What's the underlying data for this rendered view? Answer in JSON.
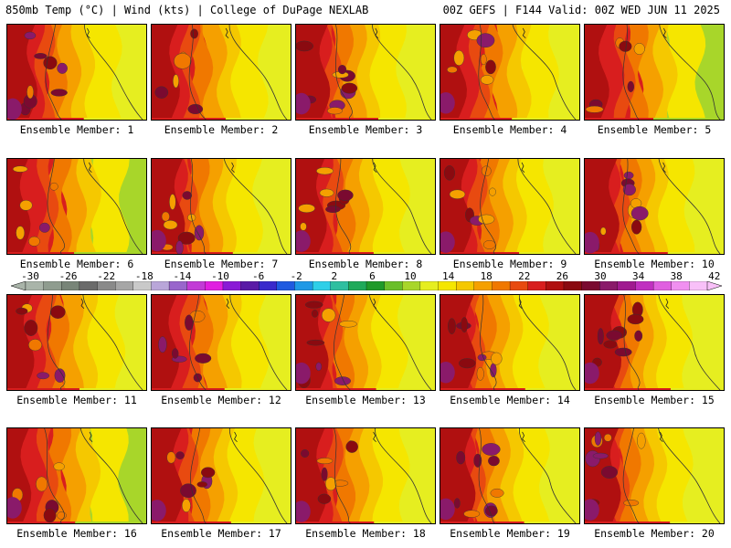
{
  "header": {
    "title_left": "850mb Temp (°C) | Wind (kts) | College of DuPage NEXLAB",
    "title_right": "00Z GEFS | F144 Valid: 00Z WED JUN 11 2025"
  },
  "colorbar": {
    "ticks": [
      "-30",
      "-26",
      "-22",
      "-18",
      "-14",
      "-10",
      "-6",
      "-2",
      "2",
      "6",
      "10",
      "14",
      "18",
      "22",
      "26",
      "30",
      "34",
      "38",
      "42"
    ],
    "colors": [
      "#a9b4a9",
      "#8f9c8f",
      "#788578",
      "#6b6b6b",
      "#8a8a8a",
      "#a6a6a6",
      "#c9c9c9",
      "#b9a6d9",
      "#9966cc",
      "#c23bd6",
      "#e01fe0",
      "#8a1ad6",
      "#5a1aa6",
      "#3a2acc",
      "#1f5ae0",
      "#1f99e6",
      "#2fcfe8",
      "#2fbfa0",
      "#1faa5a",
      "#1f9a2a",
      "#6abf2a",
      "#a8d62a",
      "#e6ee20",
      "#f5e600",
      "#f5c800",
      "#f5a000",
      "#f07800",
      "#e84a10",
      "#d81e1e",
      "#b01010",
      "#8a0a10",
      "#7a0a30",
      "#8a1a6a",
      "#a01a90",
      "#c030c0",
      "#e060e0",
      "#f090f0",
      "#f8c0f8"
    ]
  },
  "members": [
    {
      "label": "Ensemble Member: 1",
      "warm": 0.62
    },
    {
      "label": "Ensemble Member: 2",
      "warm": 0.55
    },
    {
      "label": "Ensemble Member: 3",
      "warm": 0.78
    },
    {
      "label": "Ensemble Member: 4",
      "warm": 0.48
    },
    {
      "label": "Ensemble Member: 5",
      "warm": 0.4
    },
    {
      "label": "Ensemble Member: 6",
      "warm": 0.35
    },
    {
      "label": "Ensemble Member: 7",
      "warm": 0.75
    },
    {
      "label": "Ensemble Member: 8",
      "warm": 0.65
    },
    {
      "label": "Ensemble Member: 9",
      "warm": 0.68
    },
    {
      "label": "Ensemble Member: 10",
      "warm": 0.8
    },
    {
      "label": "Ensemble Member: 11",
      "warm": 0.5
    },
    {
      "label": "Ensemble Member: 12",
      "warm": 0.52
    },
    {
      "label": "Ensemble Member: 13",
      "warm": 0.72
    },
    {
      "label": "Ensemble Member: 14",
      "warm": 0.85
    },
    {
      "label": "Ensemble Member: 15",
      "warm": 0.88
    },
    {
      "label": "Ensemble Member: 16",
      "warm": 0.38
    },
    {
      "label": "Ensemble Member: 17",
      "warm": 0.7
    },
    {
      "label": "Ensemble Member: 18",
      "warm": 0.66
    },
    {
      "label": "Ensemble Member: 19",
      "warm": 0.82
    },
    {
      "label": "Ensemble Member: 20",
      "warm": 0.86
    }
  ]
}
